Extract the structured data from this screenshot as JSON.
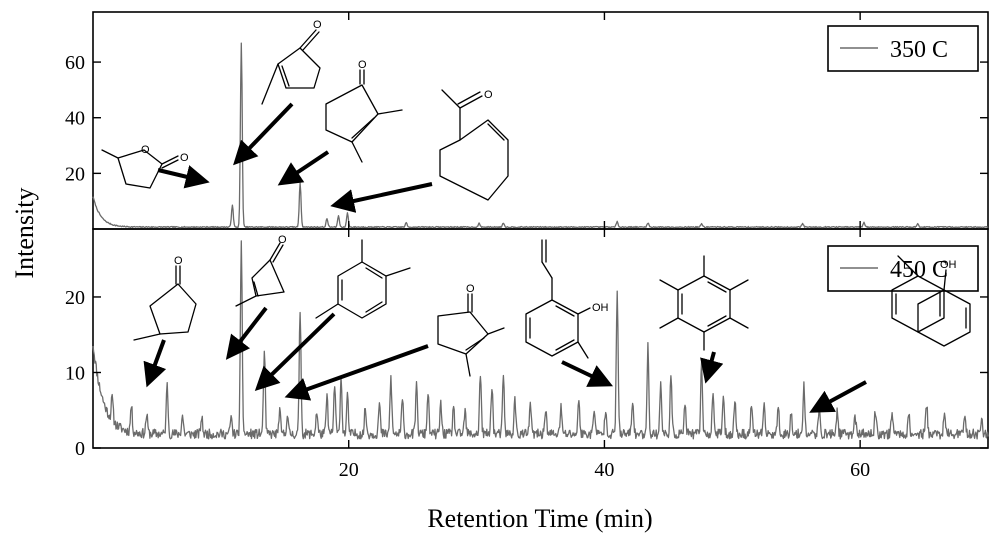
{
  "chart_data": {
    "type": "line",
    "xlabel": "Retention Time (min)",
    "ylabel": "Intensity",
    "xlim": [
      0,
      70
    ],
    "x_ticks": [
      20,
      40,
      60
    ],
    "x_tick_labels": [
      "20",
      "40",
      "60"
    ],
    "grid": false,
    "colors": {
      "trace": "#6b6b6b",
      "frame": "#000000",
      "arrow": "#000000"
    },
    "panels": [
      {
        "legend": "350 C",
        "legend_placement": "top-right",
        "ylim": [
          0,
          78
        ],
        "y_ticks": [
          20,
          40,
          60
        ],
        "y_tick_labels": [
          "20",
          "40",
          "60"
        ],
        "baseline": 0.5,
        "start_decay": {
          "peak": 11,
          "tau": 0.6
        },
        "peaks": [
          [
            10.9,
            8
          ],
          [
            11.6,
            66
          ],
          [
            16.2,
            16
          ],
          [
            18.3,
            3
          ],
          [
            19.2,
            4
          ],
          [
            19.9,
            5
          ],
          [
            24.5,
            1.5
          ],
          [
            30.2,
            1.3
          ],
          [
            32.1,
            1.5
          ],
          [
            41.0,
            2
          ],
          [
            43.4,
            1.5
          ],
          [
            47.6,
            1.2
          ],
          [
            55.5,
            1.3
          ],
          [
            60.3,
            1.6
          ],
          [
            64.5,
            1.1
          ]
        ],
        "noise": {
          "amplitude": 0.4,
          "seed": 7
        }
      },
      {
        "legend": "450 C",
        "legend_placement": "top-right",
        "ylim": [
          0,
          29
        ],
        "y_ticks": [
          0,
          10,
          20
        ],
        "y_tick_labels": [
          "0",
          "10",
          "20"
        ],
        "baseline": 1.2,
        "start_decay": {
          "peak": 12,
          "tau": 0.8
        },
        "peaks": [
          [
            1.5,
            3
          ],
          [
            3.0,
            3.5
          ],
          [
            4.2,
            2.5
          ],
          [
            5.8,
            6.5
          ],
          [
            7.0,
            2.5
          ],
          [
            8.5,
            2.2
          ],
          [
            10.8,
            2.2
          ],
          [
            11.6,
            25
          ],
          [
            13.4,
            11
          ],
          [
            14.6,
            3
          ],
          [
            15.2,
            2.5
          ],
          [
            16.2,
            16.5
          ],
          [
            17.5,
            3
          ],
          [
            18.3,
            5
          ],
          [
            18.9,
            6.5
          ],
          [
            19.4,
            7.5
          ],
          [
            19.9,
            5
          ],
          [
            21.3,
            3.5
          ],
          [
            22.4,
            4
          ],
          [
            23.3,
            7.5
          ],
          [
            24.2,
            4.5
          ],
          [
            25.3,
            6.5
          ],
          [
            26.2,
            5.5
          ],
          [
            27.2,
            4
          ],
          [
            28.2,
            3.5
          ],
          [
            29.1,
            3
          ],
          [
            30.3,
            8
          ],
          [
            31.2,
            6.5
          ],
          [
            32.1,
            7.5
          ],
          [
            33.0,
            4.5
          ],
          [
            34.2,
            4
          ],
          [
            35.4,
            3.5
          ],
          [
            36.6,
            3.5
          ],
          [
            38.0,
            4.5
          ],
          [
            39.2,
            3.5
          ],
          [
            40.1,
            3.5
          ],
          [
            41.0,
            19
          ],
          [
            42.2,
            4.5
          ],
          [
            43.4,
            11.5
          ],
          [
            44.4,
            6.5
          ],
          [
            45.2,
            7.5
          ],
          [
            46.3,
            4
          ],
          [
            47.6,
            9.5
          ],
          [
            48.5,
            5.5
          ],
          [
            49.3,
            5
          ],
          [
            50.2,
            4.5
          ],
          [
            51.5,
            4
          ],
          [
            52.5,
            3.5
          ],
          [
            53.6,
            3.5
          ],
          [
            54.6,
            3
          ],
          [
            55.6,
            6.5
          ],
          [
            56.8,
            3
          ],
          [
            58.2,
            3
          ],
          [
            59.6,
            2.5
          ],
          [
            61.2,
            3
          ],
          [
            62.5,
            3
          ],
          [
            63.8,
            2.5
          ],
          [
            65.2,
            4
          ],
          [
            66.6,
            2.5
          ],
          [
            68.2,
            2.5
          ],
          [
            69.5,
            2
          ]
        ],
        "noise": {
          "amplitude": 1.3,
          "seed": 11
        }
      }
    ]
  }
}
